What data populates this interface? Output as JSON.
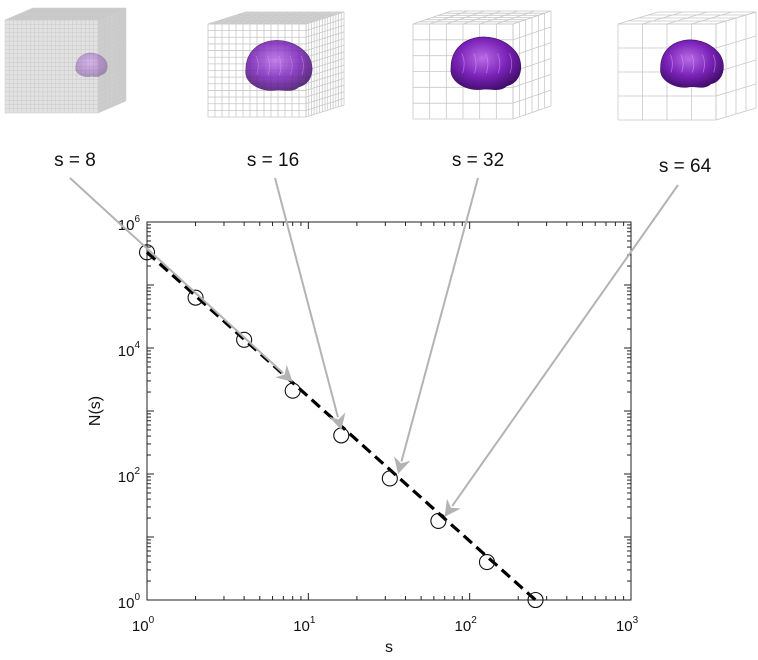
{
  "chart_data": {
    "type": "scatter",
    "xlabel": "s",
    "ylabel": "N(s)",
    "xscale": "log",
    "yscale": "log",
    "xlim": [
      1,
      1000
    ],
    "ylim": [
      1,
      1000000
    ],
    "grid": false,
    "x_ticks": [
      {
        "base": "10",
        "exp": "0",
        "value": 1
      },
      {
        "base": "10",
        "exp": "1",
        "value": 10
      },
      {
        "base": "10",
        "exp": "2",
        "value": 100
      },
      {
        "base": "10",
        "exp": "3",
        "value": 1000
      }
    ],
    "y_ticks": [
      {
        "base": "10",
        "exp": "0",
        "value": 1
      },
      {
        "base": "10",
        "exp": "2",
        "value": 100
      },
      {
        "base": "10",
        "exp": "4",
        "value": 10000
      },
      {
        "base": "10",
        "exp": "6",
        "value": 1000000
      }
    ],
    "series": [
      {
        "marker": "open-circle",
        "x": [
          1,
          2,
          4,
          8,
          16,
          32,
          64,
          128,
          256
        ],
        "y": [
          330000,
          63000,
          13500,
          2100,
          410,
          85,
          18,
          4,
          1
        ]
      }
    ],
    "fit_line": {
      "style": "dashed",
      "color": "#000000",
      "x": [
        1,
        256
      ],
      "y": [
        330000,
        1
      ]
    },
    "annotations": [
      {
        "label": "s = 8",
        "s": 8,
        "target_x": 8,
        "target_y": 2900,
        "thumbnail": "coarse-grid-brain"
      },
      {
        "label": "s  = 16",
        "s": 16,
        "target_x": 16,
        "target_y": 500,
        "thumbnail": "grid-brain"
      },
      {
        "label": "s  = 32",
        "s": 32,
        "target_x": 36,
        "target_y": 100,
        "thumbnail": "grid-brain"
      },
      {
        "label": "s  = 64",
        "s": 64,
        "target_x": 70,
        "target_y": 21,
        "thumbnail": "fine-grid-brain"
      }
    ],
    "colors": {
      "arrow": "#b3b3b3",
      "brain": "#7a22b8",
      "grid": "#c8c8c8"
    }
  }
}
